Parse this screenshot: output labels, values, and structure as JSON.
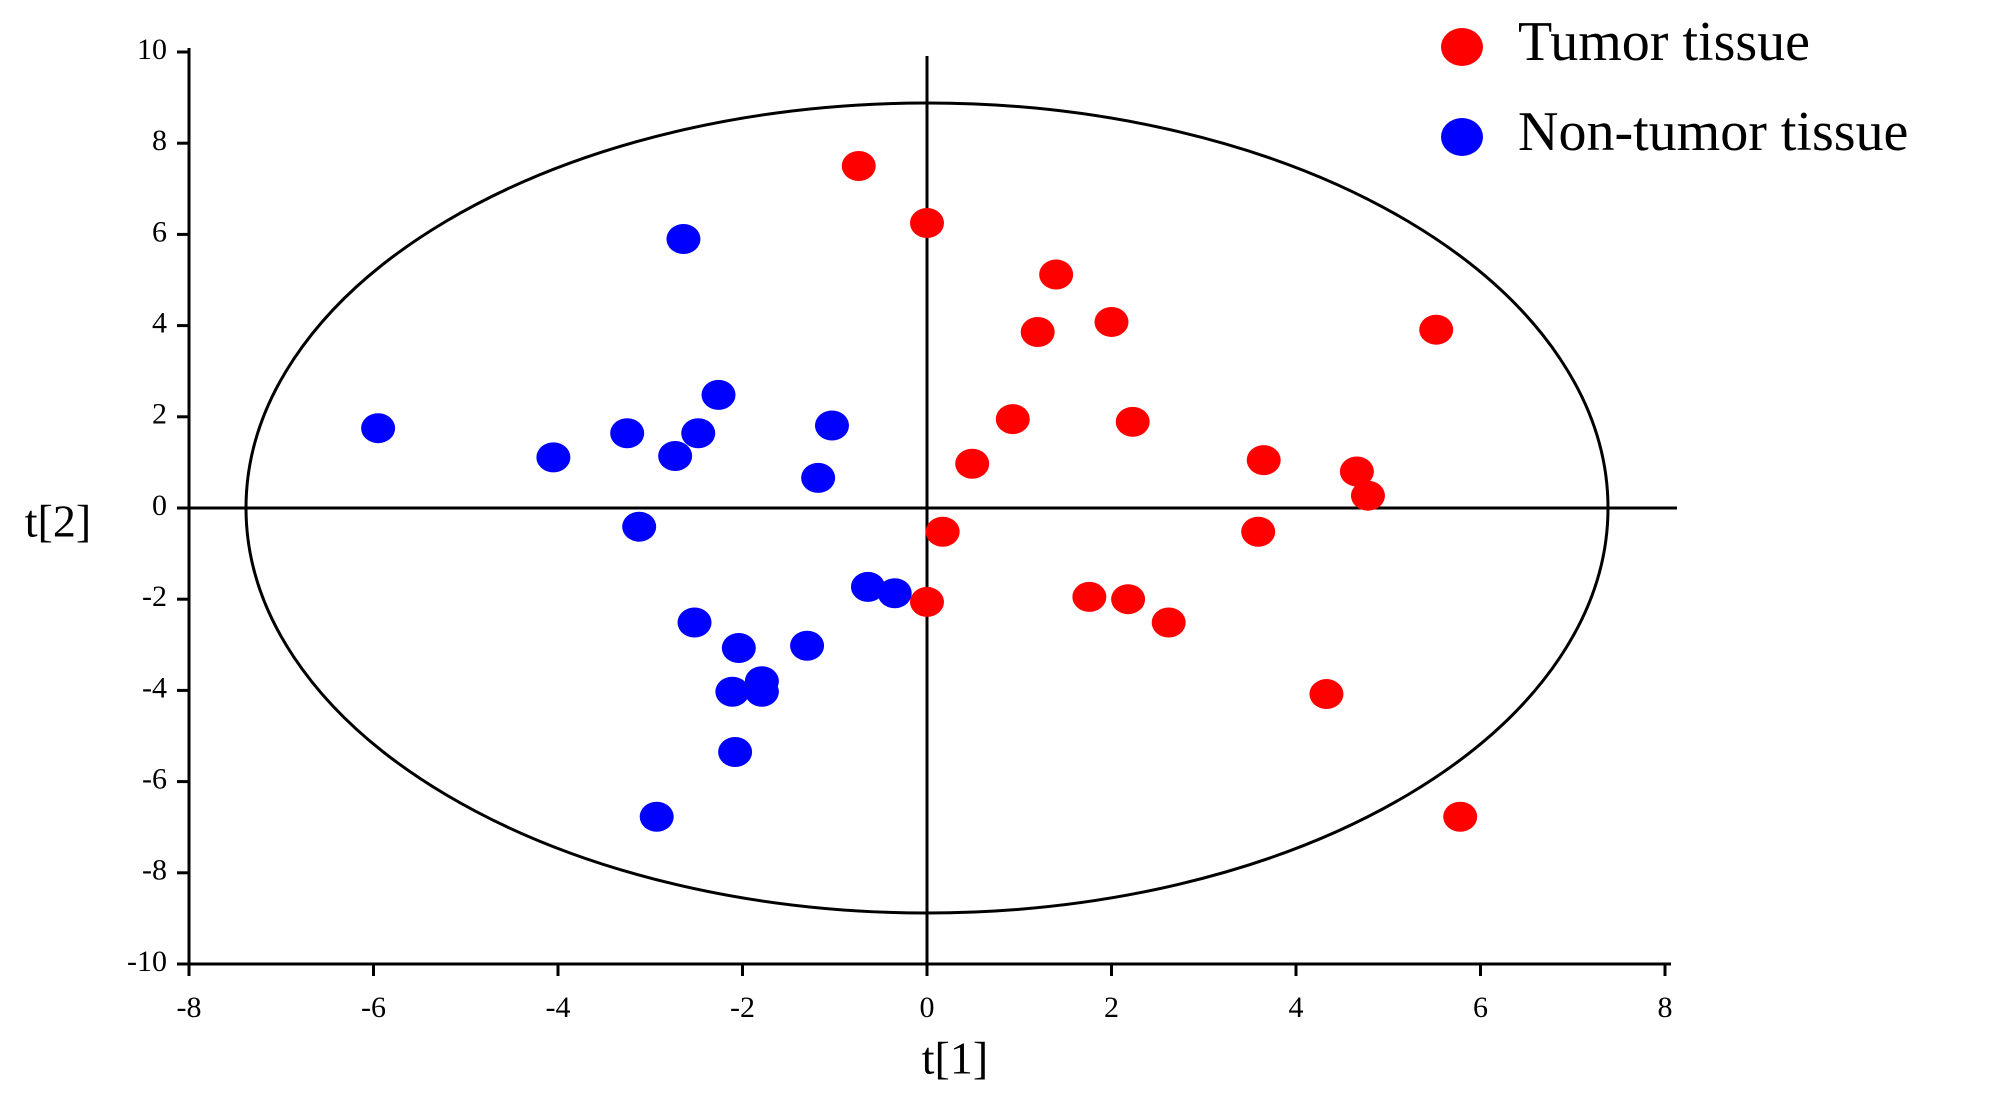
{
  "chart_data": {
    "type": "scatter",
    "xlabel": "t[1]",
    "ylabel": "t[2]",
    "xlim": [
      -8,
      8
    ],
    "xticks": [
      -8,
      -6,
      -4,
      -2,
      0,
      2,
      4,
      6,
      8
    ],
    "ylim": [
      -10,
      10
    ],
    "yticks": [
      -10,
      -8,
      -6,
      -4,
      -2,
      0,
      2,
      4,
      6,
      8,
      10
    ],
    "legend": "upper right",
    "series": [
      {
        "name": "Tumor tissue",
        "color": "#ff0000",
        "x": [
          -0.74,
          0,
          1.4,
          1.2,
          2.0,
          5.52,
          0.93,
          2.23,
          0.49,
          3.65,
          4.66,
          4.78,
          0.17,
          3.59,
          0,
          1.76,
          2.18,
          2.62,
          4.33,
          5.78
        ],
        "values": [
          7.5,
          6.25,
          5.12,
          3.86,
          4.08,
          3.91,
          1.95,
          1.89,
          0.97,
          1.05,
          0.8,
          0.27,
          -0.52,
          -0.52,
          -2.06,
          -1.95,
          -2.0,
          -2.51,
          -4.08,
          -6.77
        ]
      },
      {
        "name": "Non-tumor tissue",
        "color": "#0000ff",
        "x": [
          -2.64,
          -2.26,
          -5.95,
          -4.05,
          -3.25,
          -2.48,
          -2.73,
          -1.03,
          -1.18,
          -3.12,
          -0.64,
          -0.35,
          -2.52,
          -2.04,
          -1.3,
          -1.79,
          -2.11,
          -1.79,
          -2.08,
          -2.93
        ],
        "values": [
          5.9,
          2.48,
          1.75,
          1.11,
          1.64,
          1.64,
          1.14,
          1.81,
          0.66,
          -0.41,
          -1.73,
          -1.87,
          -2.51,
          -3.07,
          -3.02,
          -3.8,
          -4.03,
          -4.03,
          -5.35,
          -6.77
        ]
      }
    ]
  }
}
